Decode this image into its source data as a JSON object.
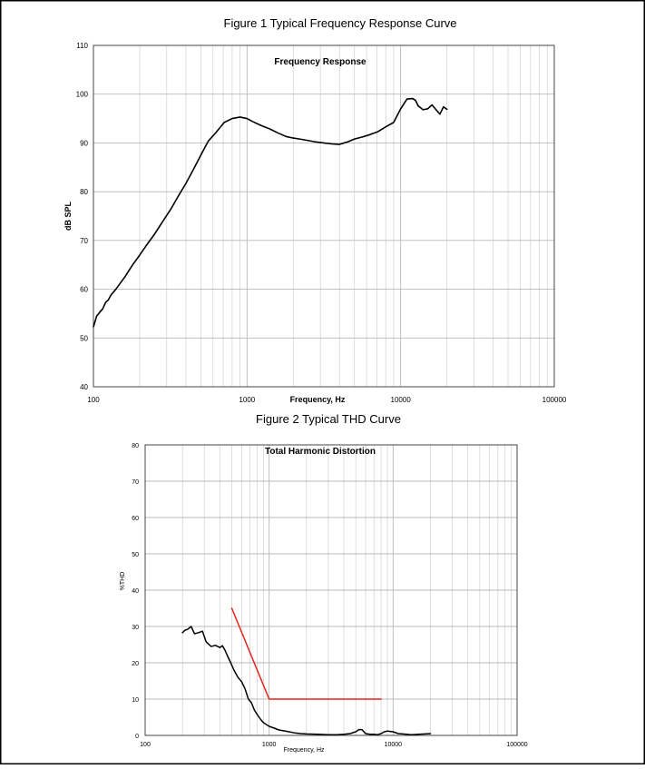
{
  "figure1_title": "Figure 1 Typical Frequency Response Curve",
  "figure2_title": "Figure 2 Typical THD Curve",
  "chart_data": [
    {
      "type": "line",
      "title": "Frequency Response",
      "xlabel": "Frequency, Hz",
      "ylabel": "dB SPL",
      "xscale": "log",
      "xlim": [
        100,
        100000
      ],
      "ylim": [
        40,
        110
      ],
      "xticks": [
        "100",
        "1000",
        "10000",
        "100000"
      ],
      "yticks": [
        "40",
        "50",
        "60",
        "70",
        "80",
        "90",
        "100",
        "110"
      ],
      "grid": true,
      "legend": "none",
      "series": [
        {
          "color": "#000000",
          "x": [
            100,
            105,
            110,
            115,
            120,
            125,
            130,
            140,
            150,
            160,
            170,
            180,
            200,
            220,
            250,
            280,
            320,
            360,
            400,
            450,
            500,
            560,
            630,
            710,
            800,
            900,
            1000,
            1100,
            1250,
            1400,
            1600,
            1800,
            2000,
            2200,
            2500,
            2800,
            3150,
            3550,
            4000,
            4500,
            5000,
            5600,
            6300,
            7100,
            8000,
            9000,
            10000,
            11000,
            12000,
            12500,
            13000,
            14000,
            15000,
            16000,
            17000,
            18000,
            19000,
            20000
          ],
          "y": [
            52.3,
            54.5,
            55.3,
            56.0,
            57.3,
            57.8,
            58.8,
            60.0,
            61.3,
            62.5,
            63.8,
            65.0,
            67.0,
            68.9,
            71.3,
            73.7,
            76.5,
            79.3,
            81.7,
            84.7,
            87.5,
            90.4,
            92.2,
            94.2,
            95.0,
            95.3,
            95.0,
            94.3,
            93.5,
            92.9,
            92.0,
            91.3,
            91.0,
            90.8,
            90.5,
            90.2,
            90.0,
            89.8,
            89.7,
            90.2,
            90.8,
            91.2,
            91.7,
            92.3,
            93.3,
            94.2,
            97.0,
            99.0,
            99.1,
            98.7,
            97.6,
            96.8,
            97.0,
            97.8,
            96.8,
            95.9,
            97.4,
            96.9
          ]
        }
      ]
    },
    {
      "type": "line",
      "title": "Total Harmonic Distortion",
      "xlabel": "Frequency, Hz",
      "ylabel": "%THD",
      "xscale": "log",
      "xlim": [
        100,
        100000
      ],
      "ylim": [
        0,
        80
      ],
      "xticks": [
        "100",
        "1000",
        "10000",
        "100000"
      ],
      "yticks": [
        "0",
        "10",
        "20",
        "30",
        "40",
        "50",
        "60",
        "70",
        "80"
      ],
      "grid": true,
      "legend": "none",
      "series": [
        {
          "color": "#000000",
          "x": [
            200,
            210,
            220,
            235,
            250,
            270,
            290,
            310,
            340,
            370,
            400,
            420,
            440,
            460,
            490,
            520,
            560,
            600,
            640,
            680,
            720,
            760,
            800,
            850,
            900,
            1000,
            1100,
            1200,
            1400,
            1600,
            1800,
            2000,
            2500,
            3000,
            3500,
            4000,
            4500,
            5000,
            5300,
            5600,
            6000,
            6500,
            7000,
            7500,
            8000,
            8500,
            9000,
            10000,
            11000,
            12000,
            14000,
            16000,
            18000,
            20000
          ],
          "y": [
            28.3,
            29.0,
            29.2,
            30.0,
            28.0,
            28.3,
            28.7,
            25.8,
            24.5,
            24.8,
            24.2,
            24.7,
            23.5,
            22.0,
            20.0,
            18.0,
            16.0,
            14.8,
            12.8,
            10.0,
            9.0,
            7.0,
            5.8,
            4.5,
            3.5,
            2.5,
            2.0,
            1.5,
            1.1,
            0.7,
            0.5,
            0.4,
            0.3,
            0.2,
            0.2,
            0.3,
            0.5,
            1.0,
            1.6,
            1.6,
            0.5,
            0.3,
            0.3,
            0.2,
            0.5,
            1.0,
            1.2,
            1.0,
            0.5,
            0.4,
            0.2,
            0.3,
            0.4,
            0.5
          ]
        },
        {
          "color": "#e8221c",
          "x": [
            500,
            1000,
            8000
          ],
          "y": [
            35,
            10,
            10
          ]
        }
      ]
    }
  ]
}
